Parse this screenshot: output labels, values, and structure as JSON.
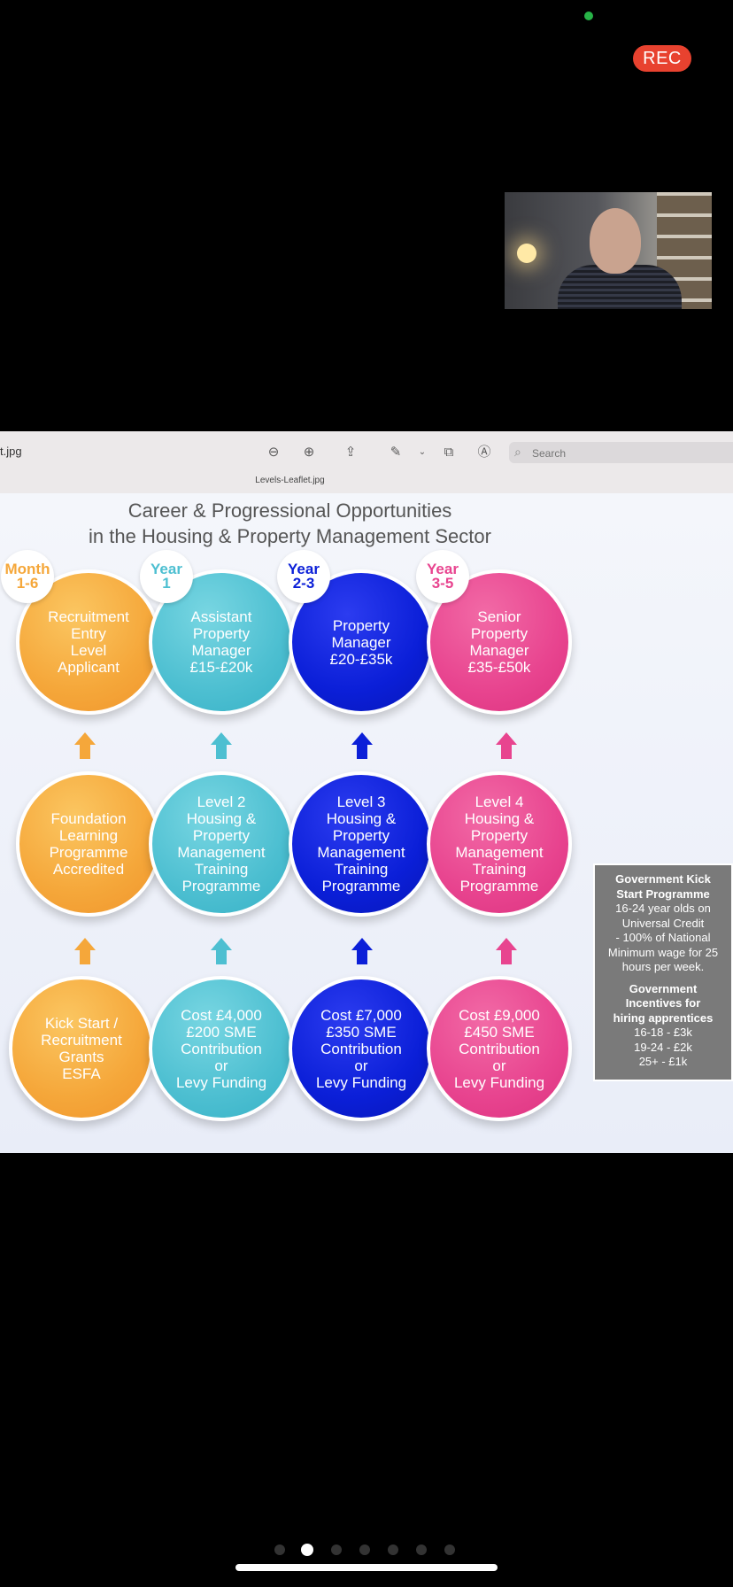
{
  "call": {
    "rec_label": "REC"
  },
  "viewer": {
    "file_title": "t.jpg",
    "file_name": "Levels-Leaflet.jpg",
    "search_placeholder": "Search",
    "icons": [
      "zoom-out-icon",
      "zoom-in-icon",
      "share-icon",
      "markup-pen-icon",
      "chevron-down-icon",
      "rotate-icon",
      "annotate-icon",
      "search-icon"
    ]
  },
  "leaflet": {
    "title_line1": "Career & Progressional Opportunities",
    "title_line2": "in the Housing & Property Management Sector",
    "columns": [
      {
        "color": "#f5a73a",
        "badge": "Month\n1-6",
        "top": "Recruitment\nEntry\nLevel\nApplicant",
        "middle": "Foundation\nLearning\nProgramme\nAccredited",
        "bottom": "Kick Start /\nRecruitment\nGrants\nESFA"
      },
      {
        "color": "#4dbfd1",
        "badge": "Year\n1",
        "top": "Assistant\nProperty\nManager\n£15-£20k",
        "middle": "Level 2\nHousing &\nProperty\nManagement\nTraining\nProgramme",
        "bottom": "Cost £4,000\n£200 SME\nContribution\nor\nLevy Funding"
      },
      {
        "color": "#0b1fd8",
        "badge": "Year\n2-3",
        "top": "Property\nManager\n£20-£35k",
        "middle": "Level 3\nHousing &\nProperty\nManagement\nTraining\nProgramme",
        "bottom": "Cost £7,000\n£350 SME\nContribution\nor\nLevy Funding"
      },
      {
        "color": "#e8448f",
        "badge": "Year\n3-5",
        "top": "Senior\nProperty\nManager\n£35-£50k",
        "middle": "Level 4\nHousing &\nProperty\nManagement\nTraining\nProgramme",
        "bottom": "Cost £9,000\n£450 SME\nContribution\nor\nLevy Funding"
      }
    ],
    "gov_box": {
      "heading1": "Government Kick\nStart Programme",
      "text1": "16-24 year olds on\nUniversal Credit\n- 100% of National\nMinimum wage for 25\nhours per week.",
      "heading2": "Government\nIncentives for\nhiring apprentices",
      "text2": "16-18 - £3k\n19-24 - £2k\n25+ - £1k"
    }
  },
  "pager": {
    "count": 7,
    "active_index": 1
  }
}
